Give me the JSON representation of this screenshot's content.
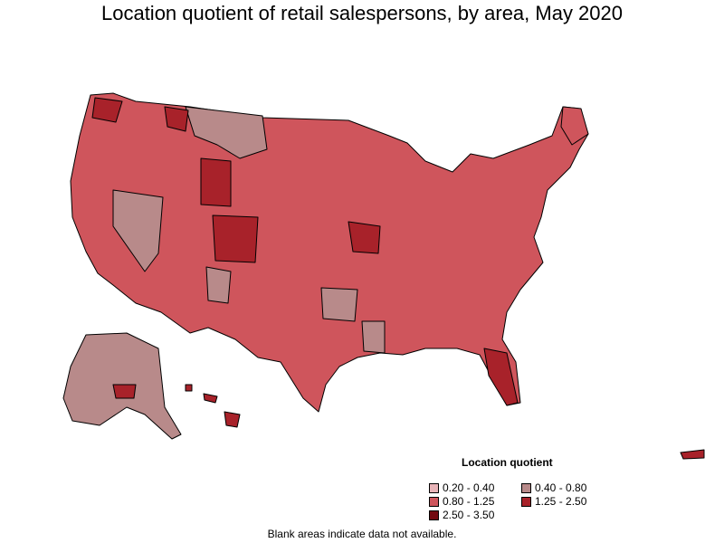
{
  "title": "Location quotient of retail salespersons, by area, May 2020",
  "legend": {
    "title": "Location quotient",
    "items": [
      {
        "label": "0.20 - 0.40",
        "color": "#e8b4b8"
      },
      {
        "label": "0.40 - 0.80",
        "color": "#b88a8a"
      },
      {
        "label": "0.80 - 1.25",
        "color": "#cf555c"
      },
      {
        "label": "1.25 - 2.50",
        "color": "#a8222a"
      },
      {
        "label": "2.50 - 3.50",
        "color": "#730a10"
      }
    ]
  },
  "footnote": "Blank areas indicate data not available.",
  "colors": {
    "border": "#000000",
    "background": "#ffffff"
  }
}
